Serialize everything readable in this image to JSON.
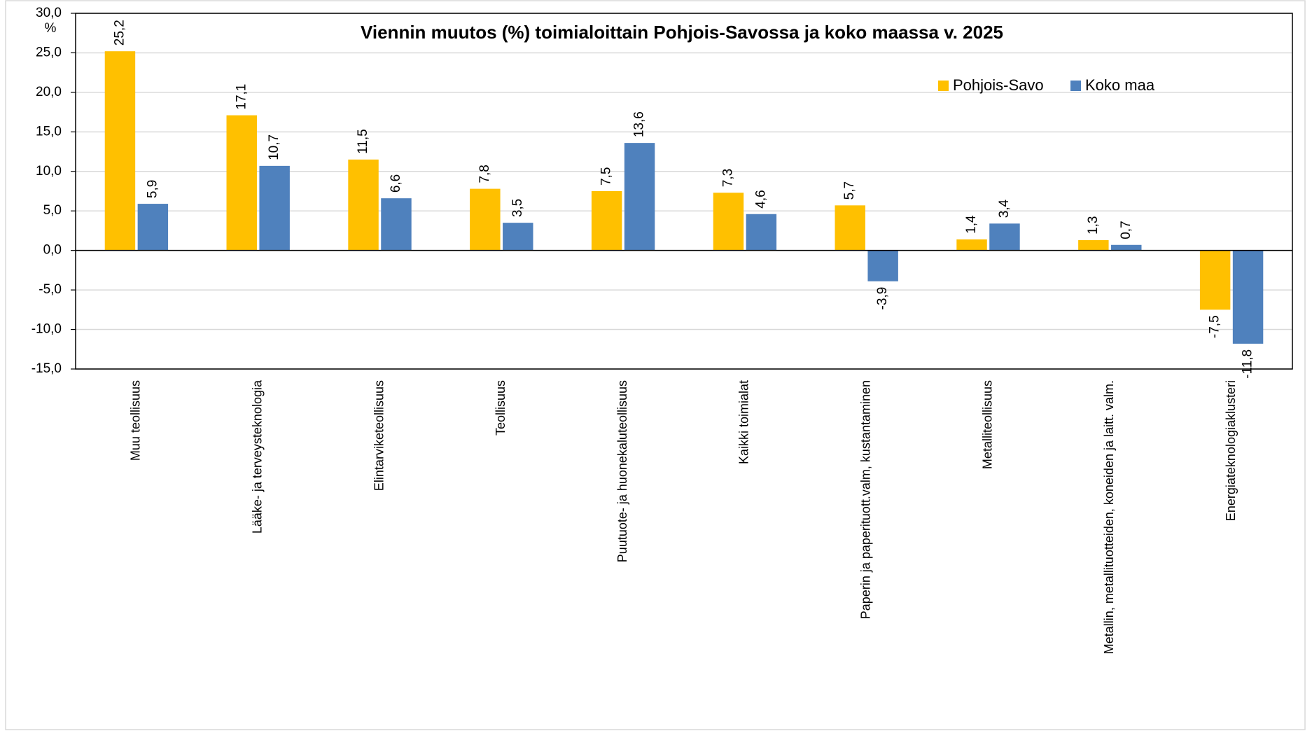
{
  "chart_data": {
    "type": "bar",
    "title": "Viennin muutos (%) toimialoittain Pohjois-Savossa ja koko maassa v. 2025",
    "y_axis_label": "%",
    "categories": [
      "Muu teollisuus",
      "Lääke- ja terveysteknologia",
      "Elintarviketeollisuus",
      "Teollisuus",
      "Puutuote- ja huonekaluteollisuus",
      "Kaikki toimialat",
      "Paperin ja paperituott.valm, kustantaminen",
      "Metalliteollisuus",
      "Metallin, metallituotteiden, koneiden ja laitt. valm.",
      "Energiateknologiaklusteri"
    ],
    "series": [
      {
        "name": "Pohjois-Savo",
        "color": "#ffc000",
        "values": [
          25.2,
          17.1,
          11.5,
          7.8,
          7.5,
          7.3,
          5.7,
          1.4,
          1.3,
          -7.5
        ],
        "value_labels": [
          "25,2",
          "17,1",
          "11,5",
          "7,8",
          "7,5",
          "7,3",
          "5,7",
          "1,4",
          "1,3",
          "-7,5"
        ]
      },
      {
        "name": "Koko maa",
        "color": "#4f81bd",
        "values": [
          5.9,
          10.7,
          6.6,
          3.5,
          13.6,
          4.6,
          -3.9,
          3.4,
          0.7,
          -11.8
        ],
        "value_labels": [
          "5,9",
          "10,7",
          "6,6",
          "3,5",
          "13,6",
          "4,6",
          "-3,9",
          "3,4",
          "0,7",
          "-11,8"
        ]
      }
    ],
    "ylim": [
      -15,
      30
    ],
    "yticks": [
      {
        "value": -15,
        "label": "-15,0"
      },
      {
        "value": -10,
        "label": "-10,0"
      },
      {
        "value": -5,
        "label": "-5,0"
      },
      {
        "value": 0,
        "label": "0,0"
      },
      {
        "value": 5,
        "label": "5,0"
      },
      {
        "value": 10,
        "label": "10,0"
      },
      {
        "value": 15,
        "label": "15,0"
      },
      {
        "value": 20,
        "label": "20,0"
      },
      {
        "value": 25,
        "label": "25,0"
      },
      {
        "value": 30,
        "label": "30,0"
      }
    ],
    "grid": true
  }
}
